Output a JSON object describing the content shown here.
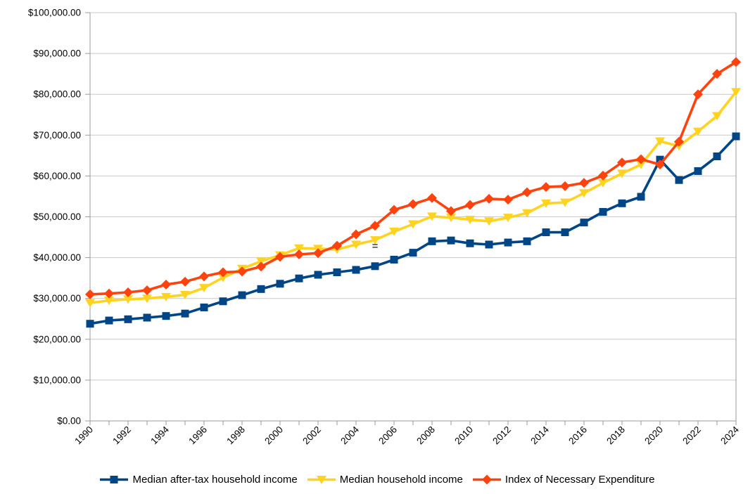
{
  "chart_data": {
    "type": "line",
    "x": [
      1990,
      1991,
      1992,
      1993,
      1994,
      1995,
      1996,
      1997,
      1998,
      1999,
      2000,
      2001,
      2002,
      2003,
      2004,
      2005,
      2006,
      2007,
      2008,
      2009,
      2010,
      2011,
      2012,
      2013,
      2014,
      2015,
      2016,
      2017,
      2018,
      2019,
      2020,
      2021,
      2022,
      2023,
      2024
    ],
    "x_label_every": 2,
    "x_tick_labels": [
      "1990",
      "1992",
      "1994",
      "1996",
      "1998",
      "2000",
      "2002",
      "2004",
      "2006",
      "2008",
      "2010",
      "2012",
      "2014",
      "2016",
      "2018",
      "2020",
      "2022",
      "2024"
    ],
    "ylim": [
      0,
      100000
    ],
    "y_ticks": [
      0,
      10000,
      20000,
      30000,
      40000,
      50000,
      60000,
      70000,
      80000,
      90000,
      100000
    ],
    "y_tick_labels": [
      "$0.00",
      "$10,000.00",
      "$20,000.00",
      "$30,000.00",
      "$40,000.00",
      "$50,000.00",
      "$60,000.00",
      "$70,000.00",
      "$80,000.00",
      "$90,000.00",
      "$100,000.00"
    ],
    "grid": "horizontal",
    "legend_position": "bottom",
    "series": [
      {
        "name": "Median after-tax household income",
        "color": "#004586",
        "marker": "square",
        "values": [
          23800,
          24600,
          24900,
          25300,
          25700,
          26300,
          27800,
          29300,
          30800,
          32300,
          33600,
          34900,
          35800,
          36400,
          37000,
          37900,
          39500,
          41200,
          44000,
          44200,
          43500,
          43200,
          43700,
          44000,
          46200,
          46200,
          48600,
          51200,
          53300,
          54900,
          64000,
          59000,
          61200,
          64800,
          69700
        ]
      },
      {
        "name": "Median household income",
        "color": "#FFD320",
        "marker": "triangle-down",
        "values": [
          28900,
          29500,
          29800,
          30000,
          30400,
          30900,
          32600,
          35100,
          37300,
          39100,
          40600,
          42300,
          42200,
          42000,
          43200,
          44300,
          46400,
          48200,
          50100,
          49800,
          49300,
          48900,
          49800,
          50900,
          53300,
          53500,
          55800,
          58300,
          60600,
          62800,
          68500,
          67300,
          70900,
          74700,
          80600
        ]
      },
      {
        "name": "Index of Necessary Expenditure",
        "color": "#FF420E",
        "marker": "diamond",
        "values": [
          31000,
          31200,
          31500,
          32000,
          33400,
          34100,
          35400,
          36400,
          36600,
          37800,
          40200,
          40800,
          41100,
          42900,
          45700,
          47800,
          51700,
          53100,
          54600,
          51400,
          52900,
          54400,
          54200,
          56000,
          57300,
          57500,
          58300,
          60100,
          63300,
          64100,
          62800,
          68400,
          80000,
          85000,
          87900
        ]
      }
    ],
    "annotations": [
      {
        "text": "=",
        "x": 2005,
        "y": 42900
      }
    ]
  }
}
